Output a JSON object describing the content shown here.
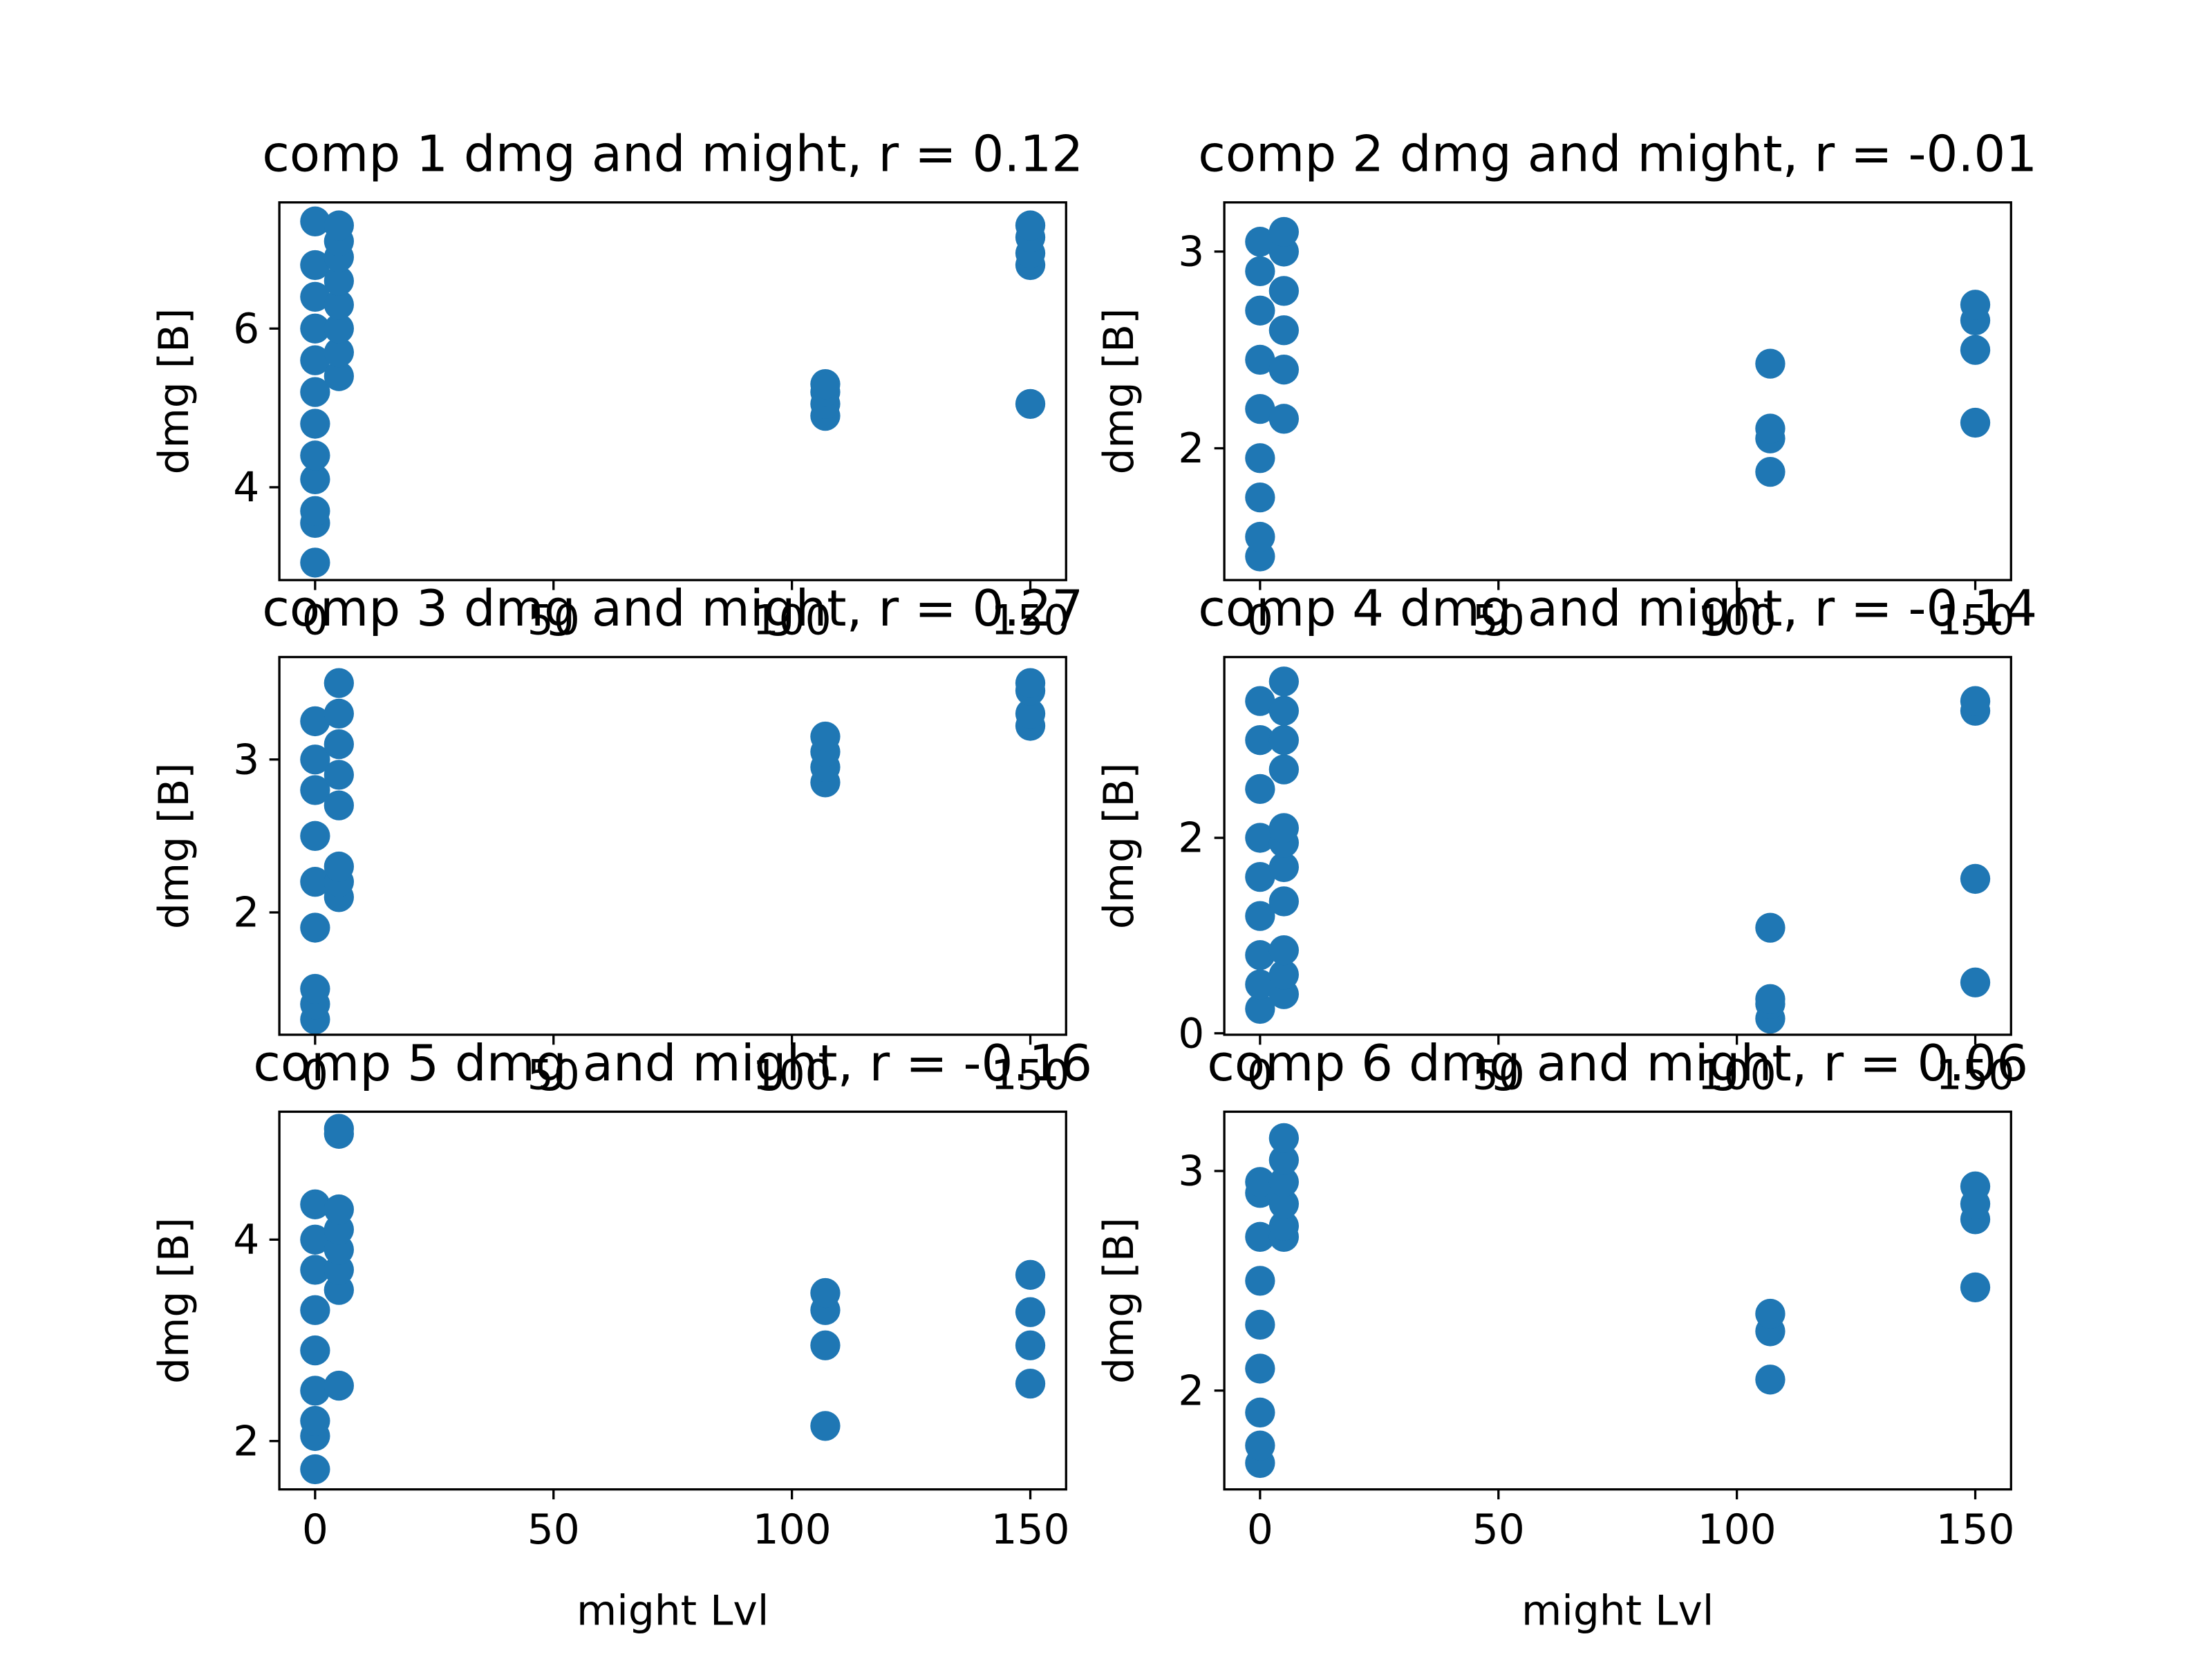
{
  "chart_data": [
    {
      "type": "scatter",
      "title": "comp 1 dmg and might, r = 0.12",
      "ylabel": "dmg [B]",
      "color": "#1f77b4",
      "x": [
        0,
        0,
        0,
        0,
        0,
        0,
        0,
        0,
        0,
        0,
        0,
        0,
        5,
        5,
        5,
        5,
        5,
        5,
        5,
        5,
        107,
        107,
        107,
        107,
        150,
        150,
        150,
        150,
        150
      ],
      "values": [
        3.05,
        3.55,
        3.7,
        4.1,
        4.4,
        4.8,
        5.2,
        5.6,
        6.0,
        6.4,
        6.8,
        7.35,
        5.4,
        5.7,
        6.0,
        6.3,
        6.6,
        6.9,
        7.1,
        7.3,
        4.9,
        5.05,
        5.2,
        5.3,
        5.05,
        6.8,
        6.95,
        7.15,
        7.3
      ],
      "xlim": [
        -7.5,
        157.5
      ],
      "xticks": [
        0,
        50,
        100,
        150
      ],
      "ylim": [
        2.83,
        7.59
      ],
      "yticks": [
        4,
        6
      ]
    },
    {
      "type": "scatter",
      "title": "comp 2 dmg and might, r = -0.01",
      "ylabel": "dmg [B]",
      "color": "#1f77b4",
      "x": [
        0,
        0,
        0,
        0,
        0,
        0,
        0,
        0,
        0,
        5,
        5,
        5,
        5,
        5,
        5,
        107,
        107,
        107,
        107,
        150,
        150,
        150,
        150
      ],
      "values": [
        1.45,
        1.55,
        1.75,
        1.95,
        2.2,
        2.45,
        2.7,
        2.9,
        3.05,
        2.15,
        2.4,
        2.6,
        2.8,
        3.0,
        3.1,
        1.88,
        2.05,
        2.1,
        2.43,
        2.13,
        2.5,
        2.65,
        2.73
      ],
      "xlim": [
        -7.5,
        157.5
      ],
      "xticks": [
        0,
        50,
        100,
        150
      ],
      "ylim": [
        1.33,
        3.25
      ],
      "yticks": [
        2,
        3
      ]
    },
    {
      "type": "scatter",
      "title": "comp 3 dmg and might, r = 0.27",
      "ylabel": "dmg [B]",
      "color": "#1f77b4",
      "x": [
        0,
        0,
        0,
        0,
        0,
        0,
        0,
        0,
        0,
        5,
        5,
        5,
        5,
        5,
        5,
        5,
        5,
        107,
        107,
        107,
        107,
        150,
        150,
        150,
        150
      ],
      "values": [
        1.3,
        1.4,
        1.5,
        1.9,
        2.2,
        2.5,
        2.8,
        3.0,
        3.25,
        2.1,
        2.2,
        2.3,
        2.7,
        2.9,
        3.1,
        3.3,
        3.5,
        2.85,
        2.95,
        3.05,
        3.15,
        3.22,
        3.3,
        3.45,
        3.5
      ],
      "xlim": [
        -7.5,
        157.5
      ],
      "xticks": [
        0,
        50,
        100,
        150
      ],
      "ylim": [
        1.2,
        3.67
      ],
      "yticks": [
        2,
        3
      ]
    },
    {
      "type": "scatter",
      "title": "comp 4 dmg and might, r = -0.14",
      "ylabel": "dmg [B]",
      "color": "#1f77b4",
      "x": [
        0,
        0,
        0,
        0,
        0,
        0,
        0,
        0,
        0,
        5,
        5,
        5,
        5,
        5,
        5,
        5,
        5,
        5,
        5,
        5,
        107,
        107,
        107,
        107,
        150,
        150,
        150,
        150
      ],
      "values": [
        0.25,
        0.5,
        0.8,
        1.2,
        1.6,
        2.0,
        2.5,
        3.0,
        3.4,
        0.4,
        0.6,
        0.85,
        1.35,
        1.7,
        1.95,
        2.1,
        2.7,
        3.0,
        3.3,
        3.6,
        0.15,
        0.3,
        0.35,
        1.08,
        0.52,
        1.58,
        3.3,
        3.4
      ],
      "xlim": [
        -7.5,
        157.5
      ],
      "xticks": [
        0,
        50,
        100,
        150
      ],
      "ylim": [
        -0.015,
        3.85
      ],
      "yticks": [
        0,
        2
      ]
    },
    {
      "type": "scatter",
      "title": "comp 5 dmg and might, r = -0.16",
      "xlabel": "might Lvl",
      "ylabel": "dmg [B]",
      "color": "#1f77b4",
      "x": [
        0,
        0,
        0,
        0,
        0,
        0,
        0,
        0,
        0,
        5,
        5,
        5,
        5,
        5,
        5,
        5,
        5,
        107,
        107,
        107,
        107,
        150,
        150,
        150,
        150
      ],
      "values": [
        1.72,
        2.05,
        2.2,
        2.5,
        2.9,
        3.3,
        3.7,
        4.0,
        4.35,
        2.55,
        3.5,
        3.7,
        3.9,
        4.1,
        4.3,
        5.05,
        5.1,
        2.15,
        2.95,
        3.3,
        3.47,
        2.57,
        2.95,
        3.28,
        3.65
      ],
      "xlim": [
        -7.5,
        157.5
      ],
      "xticks": [
        0,
        50,
        100,
        150
      ],
      "ylim": [
        1.52,
        5.27
      ],
      "yticks": [
        2,
        4
      ]
    },
    {
      "type": "scatter",
      "title": "comp 6 dmg and might, r = 0.06",
      "xlabel": "might Lvl",
      "ylabel": "dmg [B]",
      "color": "#1f77b4",
      "x": [
        0,
        0,
        0,
        0,
        0,
        0,
        0,
        0,
        0,
        5,
        5,
        5,
        5,
        5,
        5,
        107,
        107,
        107,
        150,
        150,
        150,
        150
      ],
      "values": [
        1.67,
        1.75,
        1.9,
        2.1,
        2.3,
        2.5,
        2.7,
        2.9,
        2.95,
        2.7,
        2.75,
        2.85,
        2.95,
        3.05,
        3.15,
        2.05,
        2.27,
        2.35,
        2.47,
        2.78,
        2.85,
        2.93
      ],
      "xlim": [
        -7.5,
        157.5
      ],
      "xticks": [
        0,
        50,
        100,
        150
      ],
      "ylim": [
        1.55,
        3.27
      ],
      "yticks": [
        2,
        3
      ]
    }
  ]
}
